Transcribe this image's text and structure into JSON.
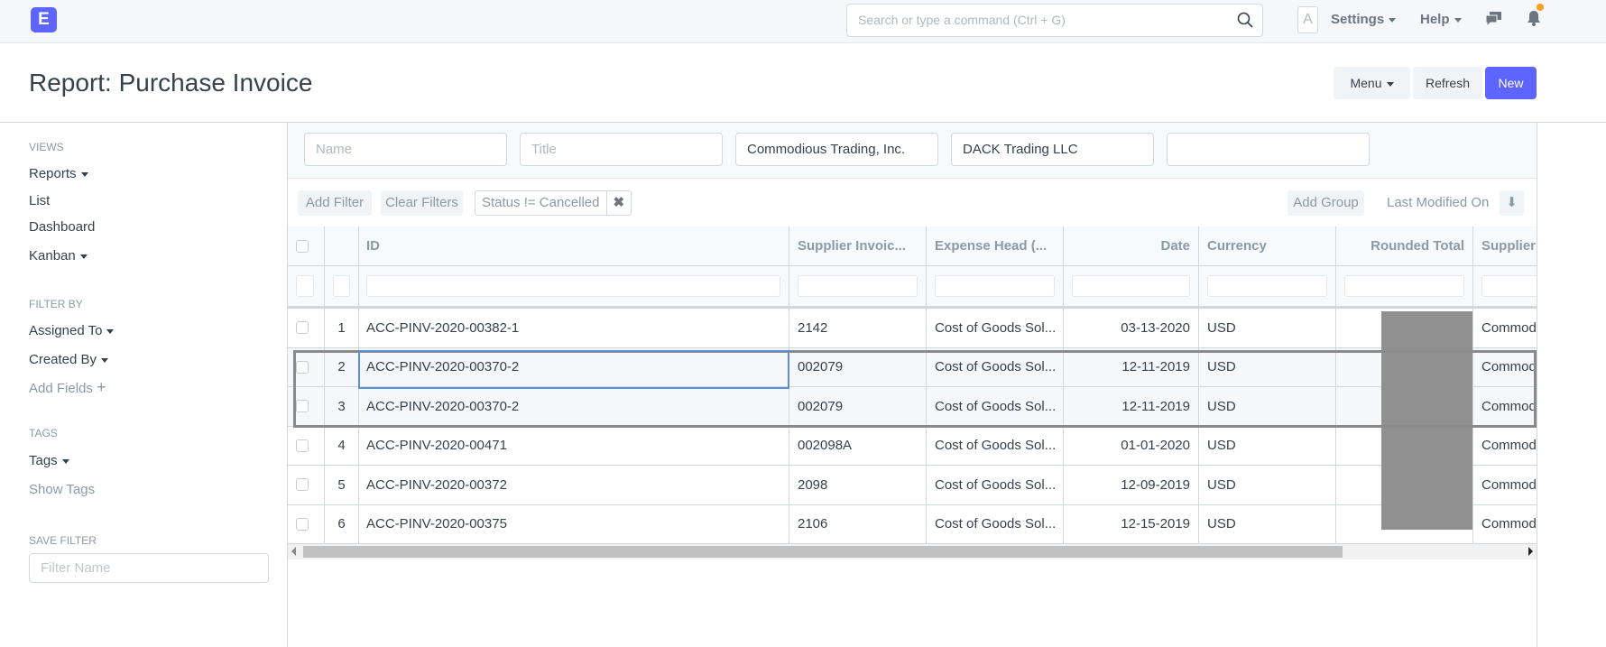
{
  "navbar": {
    "logo": "E",
    "search_placeholder": "Search or type a command (Ctrl + G)",
    "avatar": "A",
    "settings": "Settings",
    "help": "Help",
    "accent": "#5e64ff",
    "notification_dot": "#ff9f1a"
  },
  "page": {
    "title": "Report: Purchase Invoice",
    "menu": "Menu",
    "refresh": "Refresh",
    "new": "New"
  },
  "sidebar": {
    "views_heading": "VIEWS",
    "views": [
      "Reports",
      "List",
      "Dashboard",
      "Kanban"
    ],
    "filter_heading": "FILTER BY",
    "assigned_to": "Assigned To",
    "created_by": "Created By",
    "add_fields": "Add Fields",
    "tags_heading": "TAGS",
    "tags": "Tags",
    "show_tags": "Show Tags",
    "save_heading": "SAVE FILTER",
    "filter_name_placeholder": "Filter Name"
  },
  "standard_filters": [
    {
      "placeholder": "Name",
      "value": ""
    },
    {
      "placeholder": "Title",
      "value": ""
    },
    {
      "placeholder": "",
      "value": "Commodious Trading, Inc."
    },
    {
      "placeholder": "",
      "value": "DACK Trading LLC"
    },
    {
      "placeholder": "",
      "value": ""
    }
  ],
  "filter_bar": {
    "add_filter": "Add Filter",
    "clear_filters": "Clear Filters",
    "active_filter": "Status != Cancelled",
    "add_group": "Add Group",
    "sort_by": "Last Modified On"
  },
  "table": {
    "columns": [
      "ID",
      "Supplier Invoic...",
      "Expense Head (...",
      "Date",
      "Currency",
      "Rounded Total",
      "Supplier"
    ],
    "rows": [
      {
        "n": "1",
        "id": "ACC-PINV-2020-00382-1",
        "inv": "2142",
        "exp": "Cost of Goods Sol...",
        "date": "03-13-2020",
        "cur": "USD",
        "sup": "Commod"
      },
      {
        "n": "2",
        "id": "ACC-PINV-2020-00370-2",
        "inv": "002079",
        "exp": "Cost of Goods Sol...",
        "date": "12-11-2019",
        "cur": "USD",
        "sup": "Commod"
      },
      {
        "n": "3",
        "id": "ACC-PINV-2020-00370-2",
        "inv": "002079",
        "exp": "Cost of Goods Sol...",
        "date": "12-11-2019",
        "cur": "USD",
        "sup": "Commod"
      },
      {
        "n": "4",
        "id": "ACC-PINV-2020-00471",
        "inv": "002098A",
        "exp": "Cost of Goods Sol...",
        "date": "01-01-2020",
        "cur": "USD",
        "sup": "Commod"
      },
      {
        "n": "5",
        "id": "ACC-PINV-2020-00372",
        "inv": "2098",
        "exp": "Cost of Goods Sol...",
        "date": "12-09-2019",
        "cur": "USD",
        "sup": "Commod"
      },
      {
        "n": "6",
        "id": "ACC-PINV-2020-00375",
        "inv": "2106",
        "exp": "Cost of Goods Sol...",
        "date": "12-15-2019",
        "cur": "USD",
        "sup": "Commod"
      }
    ]
  }
}
